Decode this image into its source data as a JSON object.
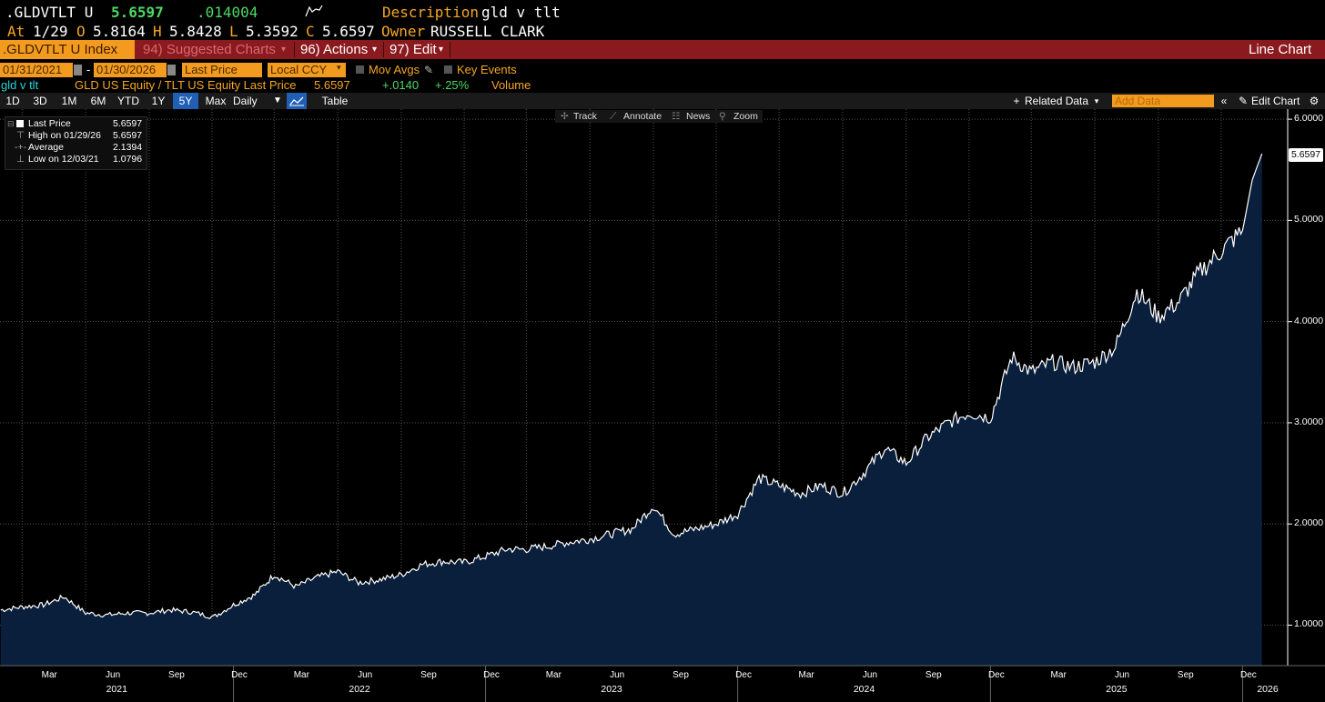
{
  "header": {
    "ticker": ".GLDVTLT U",
    "last": "5.6597",
    "change": ".014004",
    "description_label": "Description",
    "description": "gld v tlt",
    "at_label": "At",
    "at_date": "1/29",
    "o_label": "O",
    "o": "5.8164",
    "h_label": "H",
    "h": "5.8428",
    "l_label": "L",
    "l": "5.3592",
    "c_label": "C",
    "c": "5.6597",
    "owner_label": "Owner",
    "owner": "RUSSELL CLARK"
  },
  "menubar": {
    "security": ".GLDVTLT U Index",
    "suggested": "94) Suggested Charts",
    "actions": "96) Actions",
    "edit": "97) Edit",
    "chart_type": "Line Chart"
  },
  "toolbar": {
    "start_date": "01/31/2021",
    "end_date": "01/30/2026",
    "field": "Last Price",
    "currency": "Local CCY",
    "mov_avgs": "Mov Avgs",
    "key_events": "Key Events"
  },
  "security_row": {
    "name": "gld v tlt",
    "formula": "GLD US Equity / TLT US Equity Last Price",
    "value": "5.6597",
    "change": "+.0140",
    "pct": "+.25%",
    "volume": "Volume"
  },
  "periods": [
    "1D",
    "3D",
    "1M",
    "6M",
    "YTD",
    "1Y",
    "5Y",
    "Max"
  ],
  "active_period": "5Y",
  "period_bar": {
    "frequency": "Daily",
    "table": "Table",
    "related": "Related Data",
    "add_data": "Add Data",
    "edit_chart": "Edit Chart"
  },
  "chart_tools": {
    "track": "Track",
    "annotate": "Annotate",
    "news": "News",
    "zoom": "Zoom"
  },
  "legend": {
    "last_label": "Last Price",
    "last_value": "5.6597",
    "high_label": "High on 01/29/26",
    "high_value": "5.6597",
    "avg_label": "Average",
    "avg_value": "2.1394",
    "low_label": "Low on 12/03/21",
    "low_value": "1.0796"
  },
  "colors": {
    "accent": "#f39b1e",
    "menubar": "#8b1a1f",
    "area": "#0a1f3c",
    "line": "#ffffff",
    "up": "#22cc44"
  },
  "chart_data": {
    "type": "area",
    "title": "",
    "xlabel": "",
    "ylabel": "",
    "ylim": [
      0.6,
      6.1
    ],
    "yticks": [
      "1.0000",
      "2.0000",
      "3.0000",
      "4.0000",
      "5.0000",
      "6.0000"
    ],
    "xticks": [
      "Mar",
      "Jun",
      "Sep",
      "Dec",
      "Mar",
      "Jun",
      "Sep",
      "Dec",
      "Mar",
      "Jun",
      "Sep",
      "Dec",
      "Mar",
      "Jun",
      "Sep",
      "Dec",
      "Mar",
      "Jun",
      "Sep",
      "Dec"
    ],
    "years": [
      "2021",
      "2022",
      "2023",
      "2024",
      "2025",
      "2026"
    ],
    "grid": true,
    "series": [
      {
        "x": [
          "2021-01-29",
          "2021-03-01",
          "2021-04-01",
          "2021-05-01",
          "2021-06-01",
          "2021-07-01",
          "2021-08-01",
          "2021-09-01",
          "2021-10-01",
          "2021-11-01",
          "2021-12-03",
          "2022-01-01",
          "2022-02-01",
          "2022-03-01",
          "2022-04-01",
          "2022-05-01",
          "2022-06-01",
          "2022-07-01",
          "2022-08-01",
          "2022-09-01",
          "2022-10-01",
          "2022-11-01",
          "2022-12-01",
          "2023-01-01",
          "2023-02-01",
          "2023-03-01",
          "2023-04-01",
          "2023-05-01",
          "2023-06-01",
          "2023-07-01",
          "2023-08-01",
          "2023-09-01",
          "2023-10-01",
          "2023-11-01",
          "2023-12-01",
          "2024-01-01",
          "2024-02-01",
          "2024-03-01",
          "2024-04-01",
          "2024-05-01",
          "2024-06-01",
          "2024-07-01",
          "2024-08-01",
          "2024-09-01",
          "2024-10-01",
          "2024-11-01",
          "2024-12-01",
          "2025-01-01",
          "2025-02-01",
          "2025-03-01",
          "2025-04-01",
          "2025-05-01",
          "2025-06-01",
          "2025-07-01",
          "2025-08-01",
          "2025-09-01",
          "2025-10-01",
          "2025-11-01",
          "2025-12-01",
          "2026-01-01",
          "2026-01-15",
          "2026-01-29"
        ],
        "values": [
          1.15,
          1.18,
          1.2,
          1.28,
          1.12,
          1.1,
          1.12,
          1.12,
          1.15,
          1.13,
          1.08,
          1.2,
          1.3,
          1.5,
          1.38,
          1.47,
          1.53,
          1.42,
          1.45,
          1.5,
          1.6,
          1.63,
          1.62,
          1.68,
          1.75,
          1.75,
          1.78,
          1.82,
          1.85,
          1.9,
          1.95,
          2.18,
          1.9,
          1.95,
          2.0,
          2.1,
          2.45,
          2.38,
          2.3,
          2.38,
          2.3,
          2.5,
          2.75,
          2.6,
          2.85,
          3.0,
          3.1,
          3.05,
          3.65,
          3.5,
          3.6,
          3.55,
          3.6,
          3.75,
          4.3,
          4.05,
          4.2,
          4.5,
          4.7,
          4.9,
          5.4,
          5.6597
        ]
      }
    ]
  }
}
